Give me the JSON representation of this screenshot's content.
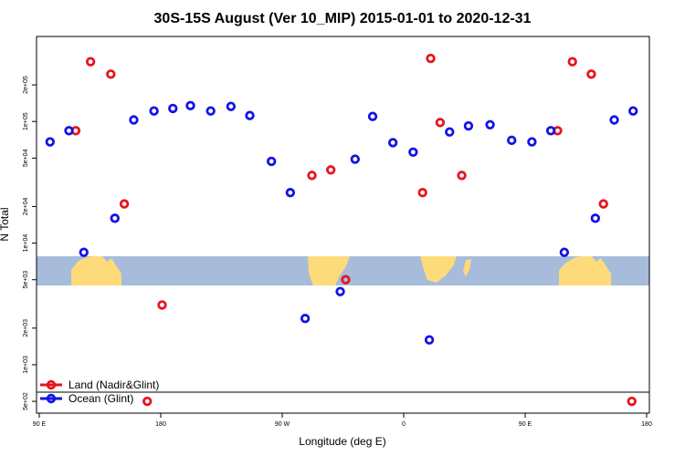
{
  "chart_data": {
    "type": "scatter",
    "title": "30S-15S August (Ver 10_MIP)   2015-01-01 to 2020-12-31",
    "xlabel": "Longitude (deg E)",
    "ylabel": "N Total",
    "x_scale": "linear",
    "y_scale": "log",
    "xlim": [
      90,
      540
    ],
    "ylim": [
      400,
      500000
    ],
    "x_ticks": [
      {
        "value": 90,
        "label": "90 E"
      },
      {
        "value": 180,
        "label": "180"
      },
      {
        "value": 270,
        "label": "90 W"
      },
      {
        "value": 360,
        "label": "0"
      },
      {
        "value": 450,
        "label": "90 E"
      },
      {
        "value": 540,
        "label": "180"
      }
    ],
    "y_ticks": [
      {
        "value": 500,
        "label": "5e+02"
      },
      {
        "value": 1000,
        "label": "1e+03"
      },
      {
        "value": 2000,
        "label": "2e+03"
      },
      {
        "value": 5000,
        "label": "5e+03"
      },
      {
        "value": 10000,
        "label": "1e+04"
      },
      {
        "value": 20000,
        "label": "2e+04"
      },
      {
        "value": 50000,
        "label": "5e+04"
      },
      {
        "value": 100000,
        "label": "1e+05"
      },
      {
        "value": 200000,
        "label": "2e+05"
      }
    ],
    "legend_position": "bottom-left",
    "series": [
      {
        "name": "Land (Nadir&Glint)",
        "color": "#e8141d",
        "points": [
          {
            "x": 117,
            "y": 84000
          },
          {
            "x": 128,
            "y": 310000
          },
          {
            "x": 143,
            "y": 245000
          },
          {
            "x": 153,
            "y": 21000
          },
          {
            "x": 170,
            "y": 500
          },
          {
            "x": 181,
            "y": 3100
          },
          {
            "x": 292,
            "y": 36000
          },
          {
            "x": 306,
            "y": 40000
          },
          {
            "x": 317,
            "y": 5000
          },
          {
            "x": 374,
            "y": 26000
          },
          {
            "x": 380,
            "y": 330000
          },
          {
            "x": 387,
            "y": 98000
          },
          {
            "x": 403,
            "y": 36000
          },
          {
            "x": 474,
            "y": 84000
          },
          {
            "x": 485,
            "y": 310000
          },
          {
            "x": 499,
            "y": 245000
          },
          {
            "x": 508,
            "y": 21000
          },
          {
            "x": 529,
            "y": 500
          }
        ]
      },
      {
        "name": "Ocean (Glint)",
        "color": "#1414e6",
        "points": [
          {
            "x": 98,
            "y": 68000
          },
          {
            "x": 112,
            "y": 84000
          },
          {
            "x": 123,
            "y": 8400
          },
          {
            "x": 146,
            "y": 16000
          },
          {
            "x": 160,
            "y": 103000
          },
          {
            "x": 175,
            "y": 122000
          },
          {
            "x": 189,
            "y": 128000
          },
          {
            "x": 202,
            "y": 135000
          },
          {
            "x": 217,
            "y": 122000
          },
          {
            "x": 232,
            "y": 133000
          },
          {
            "x": 246,
            "y": 112000
          },
          {
            "x": 262,
            "y": 47000
          },
          {
            "x": 276,
            "y": 26000
          },
          {
            "x": 287,
            "y": 2400
          },
          {
            "x": 313,
            "y": 4000
          },
          {
            "x": 324,
            "y": 49000
          },
          {
            "x": 337,
            "y": 110000
          },
          {
            "x": 352,
            "y": 67000
          },
          {
            "x": 367,
            "y": 56000
          },
          {
            "x": 379,
            "y": 1600
          },
          {
            "x": 394,
            "y": 82000
          },
          {
            "x": 408,
            "y": 92000
          },
          {
            "x": 424,
            "y": 94000
          },
          {
            "x": 440,
            "y": 70000
          },
          {
            "x": 455,
            "y": 68000
          },
          {
            "x": 469,
            "y": 84000
          },
          {
            "x": 479,
            "y": 8400
          },
          {
            "x": 502,
            "y": 16000
          },
          {
            "x": 516,
            "y": 103000
          },
          {
            "x": 530,
            "y": 122000
          }
        ]
      }
    ]
  }
}
